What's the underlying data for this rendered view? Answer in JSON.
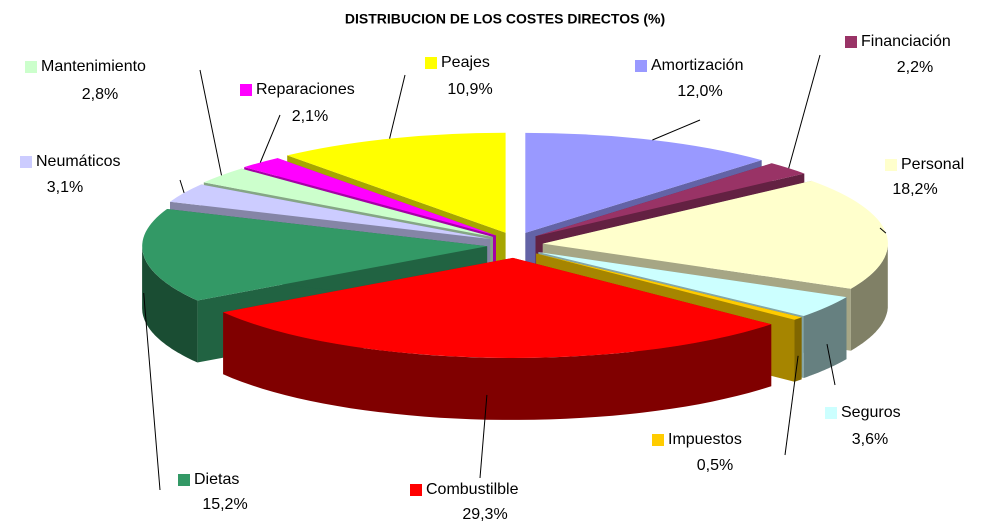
{
  "chart_data": {
    "type": "pie3d",
    "title": "DISTRIBUCION DE LOS COSTES DIRECTOS (%)",
    "categories": [
      "Amortización",
      "Financiación",
      "Personal",
      "Seguros",
      "Impuestos",
      "Combustilble",
      "Dietas",
      "Neumáticos",
      "Mantenimiento",
      "Reparaciones",
      "Peajes"
    ],
    "values": [
      12.0,
      2.2,
      18.2,
      3.6,
      0.5,
      29.3,
      15.2,
      3.1,
      2.8,
      2.1,
      10.9
    ],
    "value_labels": [
      "12,0%",
      "2,2%",
      "18,2%",
      "3,6%",
      "0,5%",
      "29,3%",
      "15,2%",
      "3,1%",
      "2,8%",
      "2,1%",
      "10,9%"
    ],
    "colors": [
      "#9999ff",
      "#993366",
      "#ffffcc",
      "#ccffff",
      "#ffcc00",
      "#ff0000",
      "#339966",
      "#ccccff",
      "#ccffcc",
      "#ff00ff",
      "#ffff00"
    ]
  }
}
